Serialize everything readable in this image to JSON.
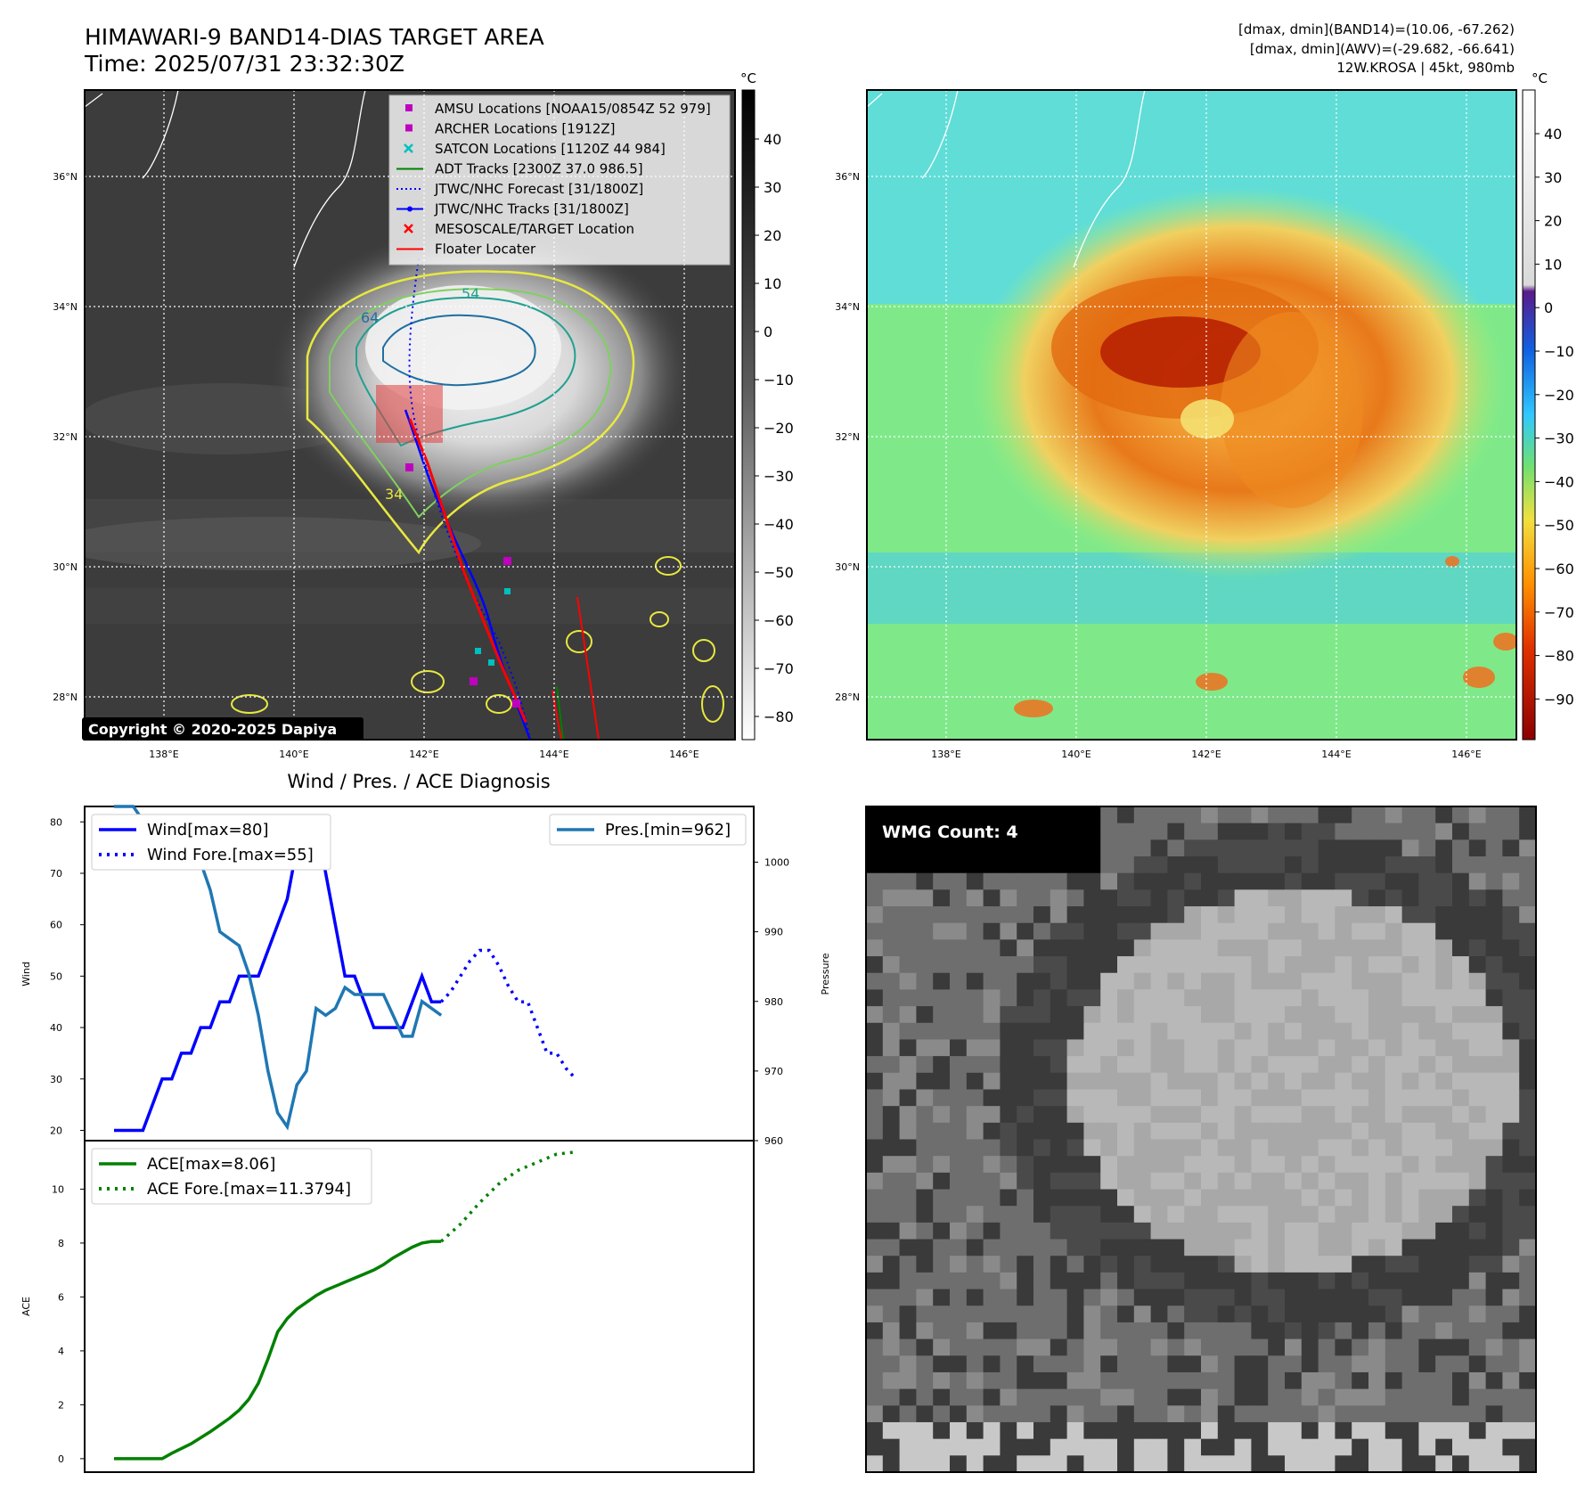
{
  "header": {
    "title_line1": "HIMAWARI-9 BAND14-DIAS TARGET AREA",
    "title_line2": "Time: 2025/07/31 23:32:30Z",
    "info_line1": "[dmax, dmin](BAND14)=(10.06, -67.262)",
    "info_line2": "[dmax, dmin](AWV)=(-29.682, -66.641)",
    "info_line3": "12W.KROSA | 45kt, 980mb"
  },
  "ir_panel": {
    "copyright": "Copyright © 2020-2025 Dapiya",
    "lat_ticks": [
      "36°N",
      "34°N",
      "32°N",
      "30°N",
      "28°N"
    ],
    "lon_ticks": [
      "138°E",
      "140°E",
      "142°E",
      "144°E",
      "146°E"
    ],
    "contour_labels": [
      "54",
      "64",
      "34"
    ],
    "colorbar": {
      "unit": "°C",
      "ticks": [
        "40",
        "30",
        "20",
        "10",
        "0",
        "−10",
        "−20",
        "−30",
        "−40",
        "−50",
        "−60",
        "−70",
        "−80"
      ]
    },
    "legend": [
      {
        "label": "AMSU Locations [NOAA15/0854Z 52 979]",
        "marker": "square",
        "color": "#bf00bf"
      },
      {
        "label": "ARCHER Locations [1912Z]",
        "marker": "square",
        "color": "#bf00bf"
      },
      {
        "label": "SATCON Locations [1120Z 44 984]",
        "marker": "x",
        "color": "#00bfbf"
      },
      {
        "label": "ADT Tracks [2300Z 37.0 986.5]",
        "marker": "line",
        "color": "#007f00"
      },
      {
        "label": "JTWC/NHC Forecast [31/1800Z]",
        "marker": "dotted",
        "color": "#0000ff"
      },
      {
        "label": "JTWC/NHC Tracks [31/1800Z]",
        "marker": "line-dot",
        "color": "#0000ff"
      },
      {
        "label": "MESOSCALE/TARGET Location",
        "marker": "x",
        "color": "#ff0000"
      },
      {
        "label": "Floater Locater",
        "marker": "line",
        "color": "#ff0000"
      }
    ]
  },
  "awv_panel": {
    "lat_ticks": [
      "36°N",
      "34°N",
      "32°N",
      "30°N",
      "28°N"
    ],
    "lon_ticks": [
      "138°E",
      "140°E",
      "142°E",
      "144°E",
      "146°E"
    ],
    "colorbar": {
      "unit": "°C",
      "ticks": [
        "40",
        "30",
        "20",
        "10",
        "0",
        "−10",
        "−20",
        "−30",
        "−40",
        "−50",
        "−60",
        "−70",
        "−80",
        "−90"
      ]
    }
  },
  "wmg_panel": {
    "label": "WMG Count: 4"
  },
  "chart_data": [
    {
      "type": "line",
      "title": "Wind / Pres. / ACE Diagnosis",
      "ylabel": "Wind",
      "ylabel_right": "Pressure",
      "ylim": [
        18,
        83
      ],
      "ylim_right": [
        960,
        1008
      ],
      "yticks": [
        20,
        30,
        40,
        50,
        60,
        70,
        80
      ],
      "yticks_right": [
        960,
        970,
        980,
        990,
        1000
      ],
      "series": [
        {
          "name": "Wind[max=80]",
          "style": "solid",
          "color": "#0000ff",
          "x": [
            0,
            3,
            4,
            5,
            6,
            7,
            8,
            9,
            10,
            11,
            12,
            13,
            14,
            15,
            16,
            17,
            18,
            19,
            20,
            21,
            22,
            23,
            24,
            25,
            26,
            27,
            28,
            29,
            30,
            31,
            32,
            33,
            34
          ],
          "values": [
            20,
            20,
            25,
            30,
            30,
            35,
            35,
            40,
            40,
            45,
            45,
            50,
            50,
            50,
            55,
            60,
            65,
            75,
            80,
            80,
            70,
            60,
            50,
            50,
            45,
            40,
            40,
            40,
            40,
            45,
            50,
            45,
            45
          ]
        },
        {
          "name": "Wind Fore.[max=55]",
          "style": "dotted",
          "color": "#0000ff",
          "x": [
            34,
            35,
            36,
            37,
            38,
            39,
            40,
            41,
            42,
            43,
            44,
            45,
            46,
            47,
            48
          ],
          "values": [
            45,
            47,
            50,
            53,
            55,
            55,
            52,
            48,
            45,
            45,
            40,
            35,
            35,
            32,
            30
          ]
        },
        {
          "name": "Pres.[min=962]",
          "style": "solid",
          "color": "#1f77b4",
          "axis": "right",
          "x": [
            0,
            1,
            2,
            3,
            4,
            5,
            6,
            7,
            8,
            9,
            10,
            11,
            12,
            13,
            14,
            15,
            16,
            17,
            18,
            19,
            20,
            21,
            22,
            23,
            24,
            25,
            26,
            27,
            28,
            29,
            30,
            31,
            32,
            33,
            34
          ],
          "values": [
            1008,
            1008,
            1008,
            1006,
            1006,
            1005,
            1002,
            1002,
            1000,
            1000,
            996,
            990,
            989,
            988,
            984,
            978,
            970,
            964,
            962,
            968,
            970,
            979,
            978,
            979,
            982,
            981,
            981,
            981,
            981,
            978,
            975,
            975,
            980,
            979,
            978
          ]
        }
      ]
    },
    {
      "type": "line",
      "ylabel": "ACE",
      "ylim": [
        -0.5,
        11.8
      ],
      "yticks": [
        0,
        2,
        4,
        6,
        8,
        10
      ],
      "series": [
        {
          "name": "ACE[max=8.06]",
          "style": "solid",
          "color": "#008000",
          "x": [
            0,
            2,
            4,
            5,
            6,
            8,
            10,
            12,
            13,
            14,
            15,
            16,
            17,
            18,
            19,
            20,
            21,
            22,
            23,
            24,
            25,
            26,
            27,
            28,
            29,
            30,
            31,
            32,
            33,
            34
          ],
          "values": [
            0,
            0,
            0,
            0,
            0.2,
            0.55,
            1.0,
            1.5,
            1.8,
            2.2,
            2.8,
            3.7,
            4.7,
            5.2,
            5.55,
            5.8,
            6.05,
            6.25,
            6.4,
            6.55,
            6.7,
            6.85,
            7.0,
            7.2,
            7.45,
            7.65,
            7.85,
            8.0,
            8.06,
            8.06
          ]
        },
        {
          "name": "ACE Fore.[max=11.3794]",
          "style": "dotted",
          "color": "#008000",
          "x": [
            34,
            36,
            38,
            40,
            42,
            44,
            46,
            48
          ],
          "values": [
            8.06,
            8.7,
            9.5,
            10.2,
            10.7,
            11.0,
            11.3,
            11.38
          ]
        }
      ]
    }
  ]
}
